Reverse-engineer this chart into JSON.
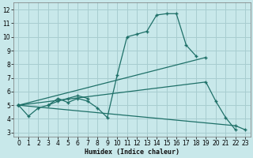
{
  "bg_color": "#c8e8ea",
  "grid_color": "#a8cdd0",
  "line_color": "#1e7068",
  "xlabel": "Humidex (Indice chaleur)",
  "xlim": [
    -0.5,
    23.5
  ],
  "ylim": [
    2.7,
    12.5
  ],
  "xticks": [
    0,
    1,
    2,
    3,
    4,
    5,
    6,
    7,
    8,
    9,
    10,
    11,
    12,
    13,
    14,
    15,
    16,
    17,
    18,
    19,
    20,
    21,
    22,
    23
  ],
  "yticks": [
    3,
    4,
    5,
    6,
    7,
    8,
    9,
    10,
    11,
    12
  ],
  "line1_x": [
    0,
    1,
    2,
    3,
    4,
    5,
    6,
    7,
    8,
    9,
    10,
    11,
    12,
    13,
    14,
    15,
    16,
    17,
    18
  ],
  "line1_y": [
    5.0,
    4.2,
    4.8,
    5.0,
    5.5,
    5.2,
    5.5,
    5.3,
    4.8,
    4.1,
    7.2,
    10.0,
    10.2,
    10.4,
    11.6,
    11.7,
    11.7,
    9.4,
    8.6
  ],
  "line2_x": [
    0,
    19
  ],
  "line2_y": [
    5.0,
    8.5
  ],
  "line3_x": [
    0,
    19,
    20,
    21,
    22
  ],
  "line3_y": [
    5.0,
    6.7,
    5.3,
    4.1,
    3.2
  ],
  "line4_x": [
    0,
    22,
    23
  ],
  "line4_y": [
    5.0,
    3.5,
    3.2
  ],
  "cluster_x": [
    3,
    4,
    5,
    6,
    7
  ],
  "cluster_y": [
    5.0,
    5.3,
    5.5,
    5.7,
    5.5
  ]
}
